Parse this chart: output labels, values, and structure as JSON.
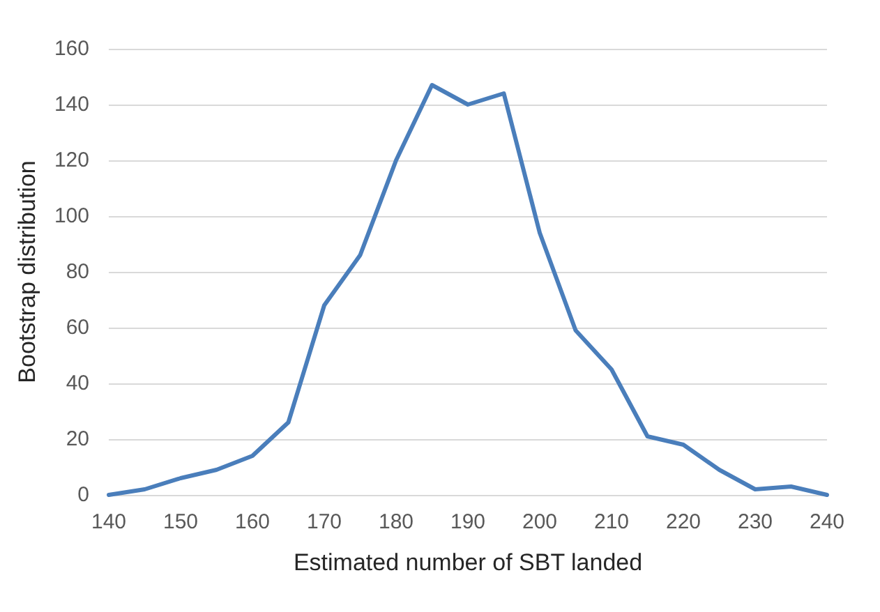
{
  "chart_data": {
    "type": "line",
    "xlabel": "Estimated number of SBT landed",
    "ylabel": "Bootstrap distribution",
    "x": [
      140,
      145,
      150,
      155,
      160,
      165,
      170,
      175,
      180,
      185,
      190,
      195,
      200,
      205,
      210,
      215,
      220,
      225,
      230,
      235,
      240
    ],
    "series": [
      {
        "color": "#4a7ebb",
        "values": [
          0,
          2,
          6,
          9,
          14,
          26,
          68,
          86,
          120,
          147,
          140,
          144,
          94,
          59,
          45,
          21,
          18,
          9,
          2,
          3,
          0
        ]
      }
    ],
    "xlim": [
      140,
      240
    ],
    "xticks": [
      140,
      150,
      160,
      170,
      180,
      190,
      200,
      210,
      220,
      230,
      240
    ],
    "ylim": [
      0,
      160
    ],
    "yticks": [
      0,
      20,
      40,
      60,
      80,
      100,
      120,
      140,
      160
    ],
    "grid": "y",
    "marker": "none",
    "line_style": "solid"
  }
}
